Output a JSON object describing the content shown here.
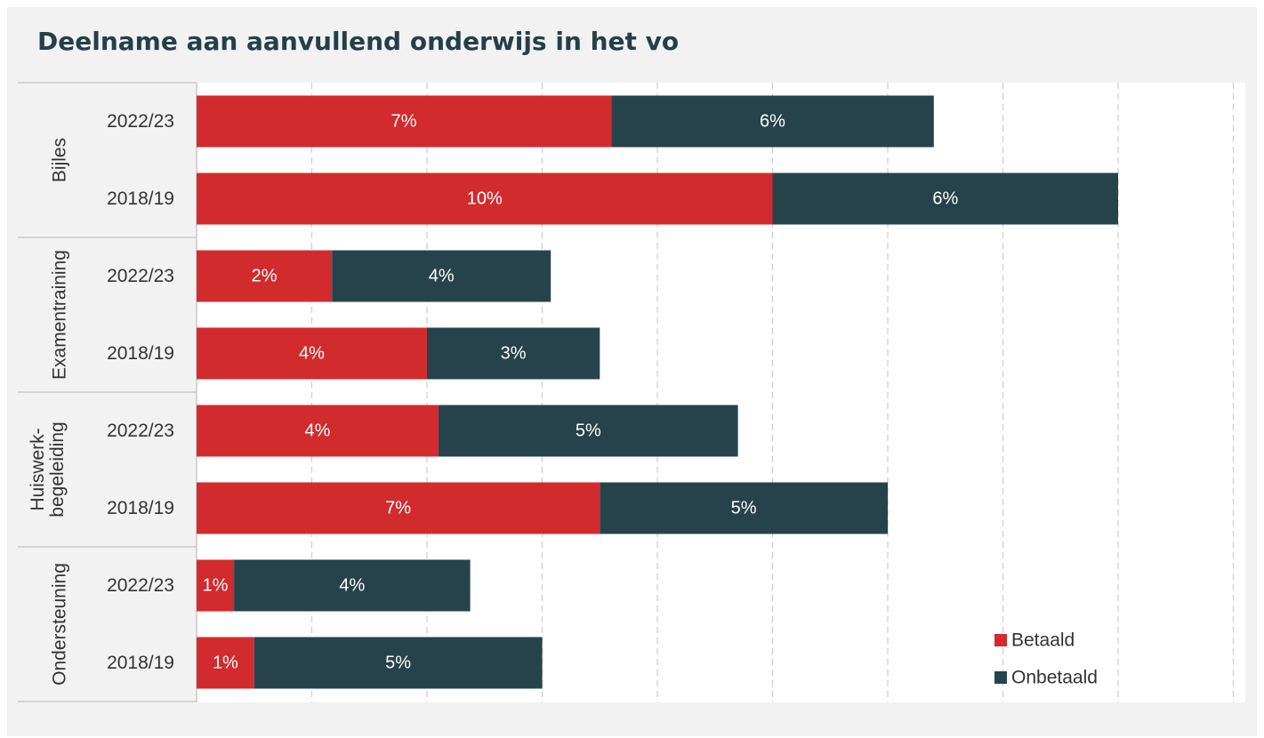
{
  "title": "Deelname aan aanvullend onderwijs in het vo",
  "chart_data": {
    "type": "bar",
    "orientation": "horizontal",
    "stacked": true,
    "title": "Deelname aan aanvullend onderwijs in het vo",
    "xlim": [
      0,
      0.18
    ],
    "grid": true,
    "legend_position": "bottom-right",
    "colors": {
      "Betaald": "#d12b2e",
      "Onbetaald": "#26434b"
    },
    "groups": [
      {
        "label": "Bijles",
        "rows": [
          {
            "label": "2022/23",
            "Betaald": 0.072,
            "Onbetaald": 0.056,
            "Betaald_label": "7%",
            "Onbetaald_label": "6%"
          },
          {
            "label": "2018/19",
            "Betaald": 0.1,
            "Onbetaald": 0.06,
            "Betaald_label": "10%",
            "Onbetaald_label": "6%"
          }
        ]
      },
      {
        "label": "Examentraining",
        "rows": [
          {
            "label": "2022/23",
            "Betaald": 0.0235,
            "Onbetaald": 0.038,
            "Betaald_label": "2%",
            "Onbetaald_label": "4%"
          },
          {
            "label": "2018/19",
            "Betaald": 0.04,
            "Onbetaald": 0.03,
            "Betaald_label": "4%",
            "Onbetaald_label": "3%"
          }
        ]
      },
      {
        "label": "Huiswerk-\nbegeleiding",
        "rows": [
          {
            "label": "2022/23",
            "Betaald": 0.042,
            "Onbetaald": 0.052,
            "Betaald_label": "4%",
            "Onbetaald_label": "5%"
          },
          {
            "label": "2018/19",
            "Betaald": 0.07,
            "Onbetaald": 0.05,
            "Betaald_label": "7%",
            "Onbetaald_label": "5%"
          }
        ]
      },
      {
        "label": "Ondersteuning",
        "rows": [
          {
            "label": "2022/23",
            "Betaald": 0.0065,
            "Onbetaald": 0.041,
            "Betaald_label": "1%",
            "Onbetaald_label": "4%"
          },
          {
            "label": "2018/19",
            "Betaald": 0.01,
            "Onbetaald": 0.05,
            "Betaald_label": "1%",
            "Onbetaald_label": "5%"
          }
        ]
      }
    ],
    "legend": [
      "Betaald",
      "Onbetaald"
    ]
  }
}
